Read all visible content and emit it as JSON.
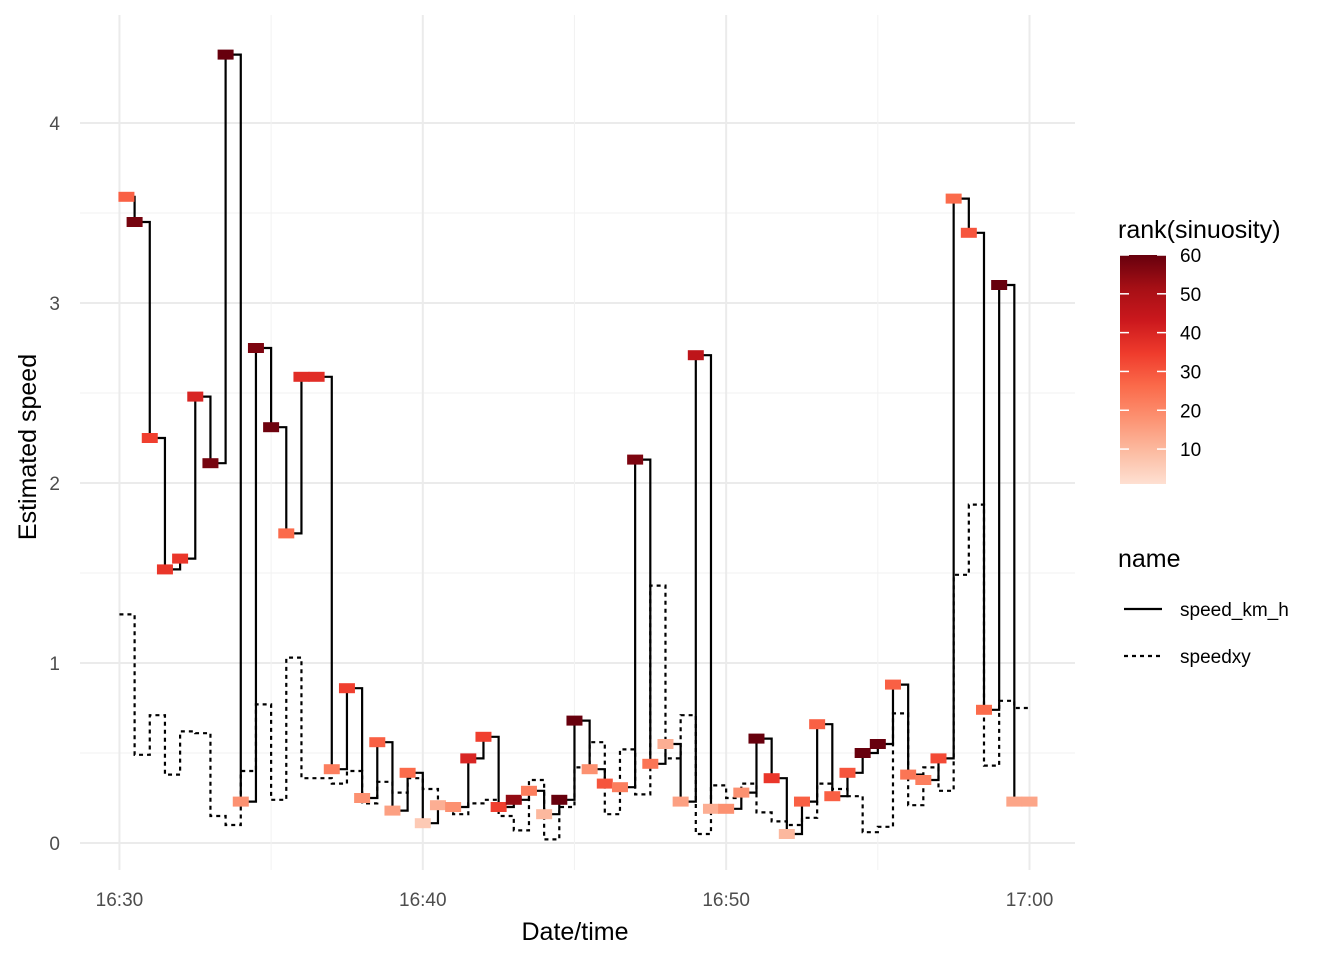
{
  "chart_data": {
    "type": "line",
    "step": true,
    "xlabel": "Date/time",
    "ylabel": "Estimated speed",
    "x_unit": "minutes",
    "x_ticks": [
      {
        "value": 0,
        "label": "16:30"
      },
      {
        "value": 10,
        "label": "16:40"
      },
      {
        "value": 20,
        "label": "16:50"
      },
      {
        "value": 30,
        "label": "17:00"
      }
    ],
    "y_ticks": [
      0,
      1,
      2,
      3,
      4
    ],
    "xlim": [
      -1.3,
      31.5
    ],
    "ylim": [
      -0.15,
      4.6
    ],
    "grid": true,
    "legend_placement": "right",
    "color_legend": {
      "title": "rank(sinuosity)",
      "ticks": [
        60,
        50,
        40,
        30,
        20,
        10
      ],
      "range": [
        1,
        60
      ],
      "colors": [
        "#fee0d2",
        "#fcbba1",
        "#fc9272",
        "#fb6a4a",
        "#ef3b2c",
        "#cb181d",
        "#a50f15",
        "#67000d"
      ]
    },
    "line_legend": {
      "title": "name",
      "entries": [
        {
          "label": "speed_km_h",
          "style": "solid"
        },
        {
          "label": "speedxy",
          "style": "dotted"
        }
      ]
    },
    "series": [
      {
        "name": "speed_km_h",
        "style": "solid",
        "x": [
          0,
          0.5,
          1,
          1.5,
          2,
          2.5,
          3,
          3.5,
          4,
          4.5,
          5,
          5.5,
          6,
          6.5,
          7,
          7.5,
          8,
          8.5,
          9,
          9.5,
          10,
          10.5,
          11,
          11.5,
          12,
          12.5,
          13,
          13.5,
          14,
          14.5,
          15,
          15.5,
          16,
          16.5,
          17,
          17.5,
          18,
          18.5,
          19,
          19.5,
          20,
          20.5,
          21,
          21.5,
          22,
          22.5,
          23,
          23.5,
          24,
          24.5,
          25,
          25.5,
          26,
          26.5,
          27,
          27.5,
          28,
          28.5,
          29,
          29.5,
          30
        ],
        "y": [
          3.59,
          3.45,
          2.25,
          1.52,
          1.58,
          2.48,
          2.11,
          4.38,
          0.23,
          2.75,
          2.31,
          1.72,
          2.59,
          2.59,
          0.41,
          0.86,
          0.25,
          0.56,
          0.18,
          0.39,
          0.11,
          0.21,
          0.2,
          0.47,
          0.59,
          0.2,
          0.24,
          0.29,
          0.16,
          0.24,
          0.68,
          0.41,
          0.33,
          0.31,
          2.13,
          0.44,
          0.55,
          0.23,
          2.71,
          0.19,
          0.19,
          0.28,
          0.58,
          0.36,
          0.05,
          0.23,
          0.66,
          0.26,
          0.39,
          0.5,
          0.55,
          0.88,
          0.38,
          0.35,
          0.47,
          3.58,
          3.39,
          0.74,
          3.1,
          0.23,
          0.23
        ],
        "rank": [
          28,
          58,
          34,
          36,
          36,
          40,
          58,
          60,
          18,
          57,
          59,
          26,
          38,
          38,
          22,
          34,
          18,
          28,
          15,
          26,
          6,
          12,
          18,
          40,
          34,
          34,
          54,
          22,
          10,
          60,
          60,
          18,
          30,
          22,
          57,
          24,
          12,
          15,
          46,
          12,
          18,
          18,
          60,
          36,
          10,
          28,
          28,
          28,
          30,
          60,
          60,
          28,
          24,
          22,
          32,
          26,
          30,
          26,
          60,
          14,
          14
        ]
      },
      {
        "name": "speedxy",
        "style": "dotted",
        "x": [
          0,
          0.5,
          1,
          1.5,
          2,
          2.5,
          3,
          3.5,
          4,
          4.5,
          5,
          5.5,
          6,
          6.5,
          7,
          7.5,
          8,
          8.5,
          9,
          9.5,
          10,
          10.5,
          11,
          11.5,
          12,
          12.5,
          13,
          13.5,
          14,
          14.5,
          15,
          15.5,
          16,
          16.5,
          17,
          17.5,
          18,
          18.5,
          19,
          19.5,
          20,
          20.5,
          21,
          21.5,
          22,
          22.5,
          23,
          23.5,
          24,
          24.5,
          25,
          25.5,
          26,
          26.5,
          27,
          27.5,
          28,
          28.5,
          29,
          29.5,
          30
        ],
        "y": [
          1.27,
          0.49,
          0.71,
          0.38,
          0.62,
          0.61,
          0.15,
          0.1,
          0.4,
          0.77,
          0.24,
          1.03,
          0.36,
          0.36,
          0.33,
          0.4,
          0.22,
          0.34,
          0.28,
          0.36,
          0.3,
          0.22,
          0.16,
          0.22,
          0.24,
          0.15,
          0.07,
          0.35,
          0.02,
          0.2,
          0.42,
          0.56,
          0.16,
          0.52,
          0.27,
          1.43,
          0.47,
          0.71,
          0.05,
          0.32,
          0.25,
          0.33,
          0.17,
          0.12,
          0.1,
          0.14,
          0.33,
          0.3,
          0.26,
          0.06,
          0.09,
          0.72,
          0.21,
          0.42,
          0.29,
          1.49,
          1.88,
          0.43,
          0.79,
          0.75,
          0.75
        ]
      }
    ]
  }
}
